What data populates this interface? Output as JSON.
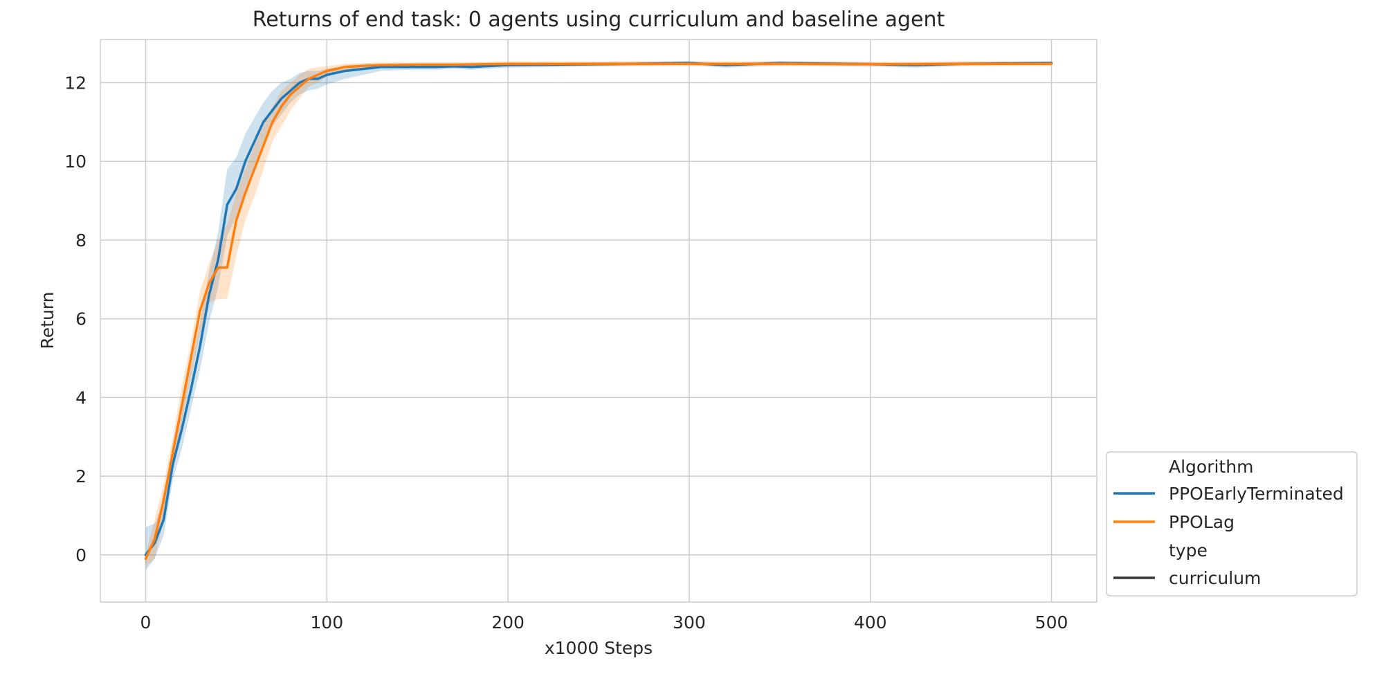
{
  "chart_data": {
    "type": "line",
    "title": "Returns of end task: 0 agents using curriculum and baseline agent",
    "xlabel": "x1000 Steps",
    "ylabel": "Return",
    "xlim": [
      -25,
      525
    ],
    "ylim": [
      -1.2,
      13.1
    ],
    "xticks": [
      0,
      100,
      200,
      300,
      400,
      500
    ],
    "yticks": [
      0,
      2,
      4,
      6,
      8,
      10,
      12
    ],
    "grid": true,
    "legend_placement": "lower-right-outside",
    "legend": {
      "hue_title": "Algorithm",
      "style_title": "type",
      "entries": [
        {
          "label": "PPOEarlyTerminated",
          "color": "#1f77b4"
        },
        {
          "label": "PPOLag",
          "color": "#ff7f0e"
        },
        {
          "label": "curriculum",
          "color": "#333333"
        }
      ]
    },
    "series": [
      {
        "name": "PPOEarlyTerminated",
        "type_name": "curriculum",
        "color": "#1f77b4",
        "x": [
          0,
          5,
          10,
          15,
          20,
          25,
          30,
          35,
          40,
          45,
          50,
          55,
          60,
          65,
          70,
          75,
          80,
          85,
          90,
          95,
          100,
          110,
          120,
          130,
          140,
          150,
          160,
          170,
          180,
          200,
          250,
          300,
          320,
          350,
          400,
          425,
          450,
          500
        ],
        "y": [
          0.0,
          0.3,
          0.9,
          2.3,
          3.2,
          4.2,
          5.3,
          6.6,
          7.5,
          8.9,
          9.3,
          10.0,
          10.5,
          11.0,
          11.3,
          11.6,
          11.8,
          12.0,
          12.1,
          12.1,
          12.2,
          12.3,
          12.35,
          12.4,
          12.4,
          12.4,
          12.4,
          12.42,
          12.4,
          12.45,
          12.47,
          12.5,
          12.45,
          12.5,
          12.47,
          12.45,
          12.48,
          12.5
        ],
        "band_lower": [
          -0.4,
          -0.1,
          0.5,
          1.9,
          2.7,
          3.7,
          4.7,
          5.9,
          6.8,
          8.1,
          8.6,
          9.3,
          9.9,
          10.5,
          10.9,
          11.2,
          11.5,
          11.7,
          11.8,
          11.85,
          11.95,
          12.1,
          12.2,
          12.3,
          12.32,
          12.33,
          12.33,
          12.35,
          12.33,
          12.38,
          12.42,
          12.45,
          12.38,
          12.44,
          12.42,
          12.38,
          12.43,
          12.46
        ],
        "band_upper": [
          0.7,
          0.8,
          1.3,
          2.7,
          3.7,
          4.8,
          5.9,
          7.2,
          8.2,
          9.8,
          10.1,
          10.7,
          11.1,
          11.5,
          11.8,
          12.0,
          12.1,
          12.25,
          12.3,
          12.3,
          12.35,
          12.42,
          12.45,
          12.48,
          12.47,
          12.47,
          12.47,
          12.49,
          12.47,
          12.5,
          12.52,
          12.55,
          12.5,
          12.55,
          12.52,
          12.5,
          12.53,
          12.54
        ]
      },
      {
        "name": "PPOLag",
        "type_name": "curriculum",
        "color": "#ff7f0e",
        "x": [
          0,
          5,
          10,
          15,
          20,
          25,
          30,
          35,
          40,
          45,
          50,
          55,
          60,
          65,
          70,
          75,
          80,
          85,
          90,
          95,
          100,
          110,
          120,
          130,
          150,
          170,
          200,
          250,
          300,
          350,
          400,
          450,
          500
        ],
        "y": [
          -0.1,
          0.4,
          1.4,
          2.6,
          3.8,
          5.0,
          6.2,
          6.9,
          7.3,
          7.3,
          8.5,
          9.2,
          9.8,
          10.4,
          11.0,
          11.4,
          11.7,
          11.9,
          12.1,
          12.2,
          12.3,
          12.4,
          12.43,
          12.45,
          12.46,
          12.46,
          12.48,
          12.48,
          12.48,
          12.48,
          12.47,
          12.48,
          12.48
        ],
        "band_lower": [
          -0.3,
          -0.1,
          0.9,
          2.2,
          3.4,
          4.5,
          5.6,
          6.4,
          6.5,
          6.5,
          7.6,
          8.5,
          9.1,
          9.8,
          10.5,
          10.9,
          11.3,
          11.6,
          11.9,
          12.0,
          12.15,
          12.3,
          12.35,
          12.38,
          12.4,
          12.4,
          12.42,
          12.42,
          12.42,
          12.42,
          12.41,
          12.42,
          12.42
        ],
        "band_upper": [
          0.0,
          0.9,
          1.8,
          3.0,
          4.3,
          5.4,
          6.7,
          7.4,
          8.0,
          8.4,
          9.2,
          9.8,
          10.4,
          10.9,
          11.4,
          11.8,
          12.0,
          12.2,
          12.35,
          12.4,
          12.42,
          12.48,
          12.5,
          12.52,
          12.52,
          12.52,
          12.54,
          12.54,
          12.54,
          12.54,
          12.53,
          12.54,
          12.54
        ]
      }
    ]
  }
}
